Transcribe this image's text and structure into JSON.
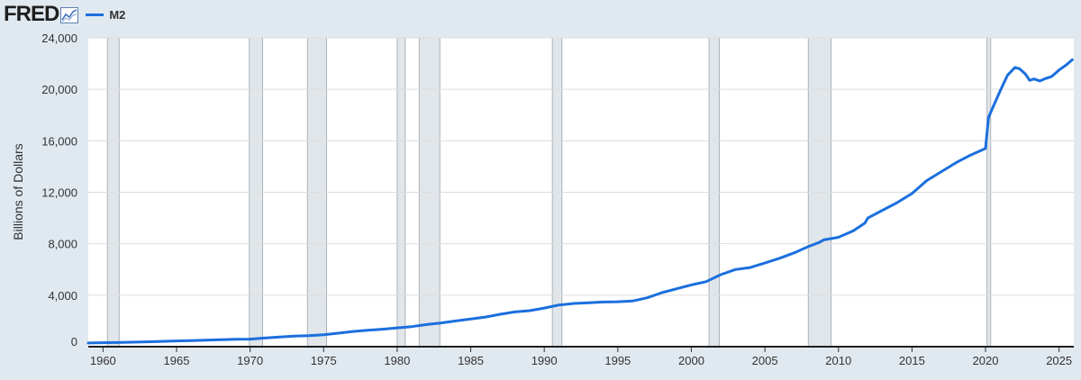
{
  "header": {
    "logo_text": "FRED",
    "logo_icon": "line-chart-icon"
  },
  "colors": {
    "background": "#e1e9f0",
    "plot_background": "#ffffff",
    "series": "#1b6fdd",
    "recession": "#e1e6ea",
    "grid": "#dddddd"
  },
  "chart_data": {
    "type": "line",
    "title": "",
    "xlabel": "",
    "ylabel": "Billions of Dollars",
    "xlim": [
      1959.0,
      2026.0
    ],
    "ylim": [
      0,
      24000
    ],
    "grid": true,
    "legend_position": "top-left",
    "x_ticks": [
      1960,
      1965,
      1970,
      1975,
      1980,
      1985,
      1990,
      1995,
      2000,
      2005,
      2010,
      2015,
      2020,
      2025
    ],
    "y_ticks": [
      0,
      4000,
      8000,
      12000,
      16000,
      20000,
      24000
    ],
    "y_tick_labels": [
      "0",
      "4,000",
      "8,000",
      "12,000",
      "16,000",
      "20,000",
      "24,000"
    ],
    "recessions": [
      [
        1960.3,
        1961.1
      ],
      [
        1969.95,
        1970.85
      ],
      [
        1973.9,
        1975.2
      ],
      [
        1980.0,
        1980.55
      ],
      [
        1981.5,
        1982.9
      ],
      [
        1990.55,
        1991.2
      ],
      [
        2001.2,
        2001.9
      ],
      [
        2007.95,
        2009.5
      ],
      [
        2020.1,
        2020.35
      ]
    ],
    "series": [
      {
        "name": "M2",
        "x": [
          1959,
          1960,
          1961,
          1962,
          1963,
          1964,
          1965,
          1966,
          1967,
          1968,
          1969,
          1970,
          1971,
          1972,
          1973,
          1974,
          1975,
          1976,
          1977,
          1978,
          1979,
          1980,
          1981,
          1982,
          1983,
          1984,
          1985,
          1986,
          1987,
          1988,
          1989,
          1990,
          1991,
          1992,
          1993,
          1994,
          1995,
          1996,
          1997,
          1998,
          1999,
          2000,
          2001,
          2002,
          2003,
          2004,
          2005,
          2006,
          2007,
          2008,
          2008.7,
          2009,
          2010,
          2011,
          2011.8,
          2012,
          2013,
          2014,
          2015,
          2016,
          2017,
          2018,
          2019,
          2020.0,
          2020.2,
          2020.5,
          2021,
          2021.5,
          2022.0,
          2022.3,
          2022.7,
          2023.0,
          2023.3,
          2023.7,
          2024.0,
          2024.5,
          2025.0,
          2025.5,
          2025.9
        ],
        "values": [
          290,
          305,
          325,
          350,
          380,
          410,
          445,
          470,
          505,
          545,
          575,
          590,
          670,
          750,
          825,
          860,
          930,
          1050,
          1180,
          1270,
          1360,
          1460,
          1560,
          1720,
          1850,
          2000,
          2150,
          2300,
          2520,
          2700,
          2800,
          3000,
          3240,
          3360,
          3410,
          3470,
          3490,
          3550,
          3800,
          4200,
          4500,
          4800,
          5050,
          5600,
          6000,
          6150,
          6500,
          6870,
          7300,
          7800,
          8100,
          8300,
          8500,
          9000,
          9600,
          10000,
          10600,
          11200,
          11900,
          12900,
          13600,
          14300,
          14900,
          15400,
          17800,
          18600,
          19900,
          21100,
          21700,
          21600,
          21200,
          20700,
          20800,
          20650,
          20800,
          21000,
          21500,
          21900,
          22300
        ]
      }
    ]
  }
}
